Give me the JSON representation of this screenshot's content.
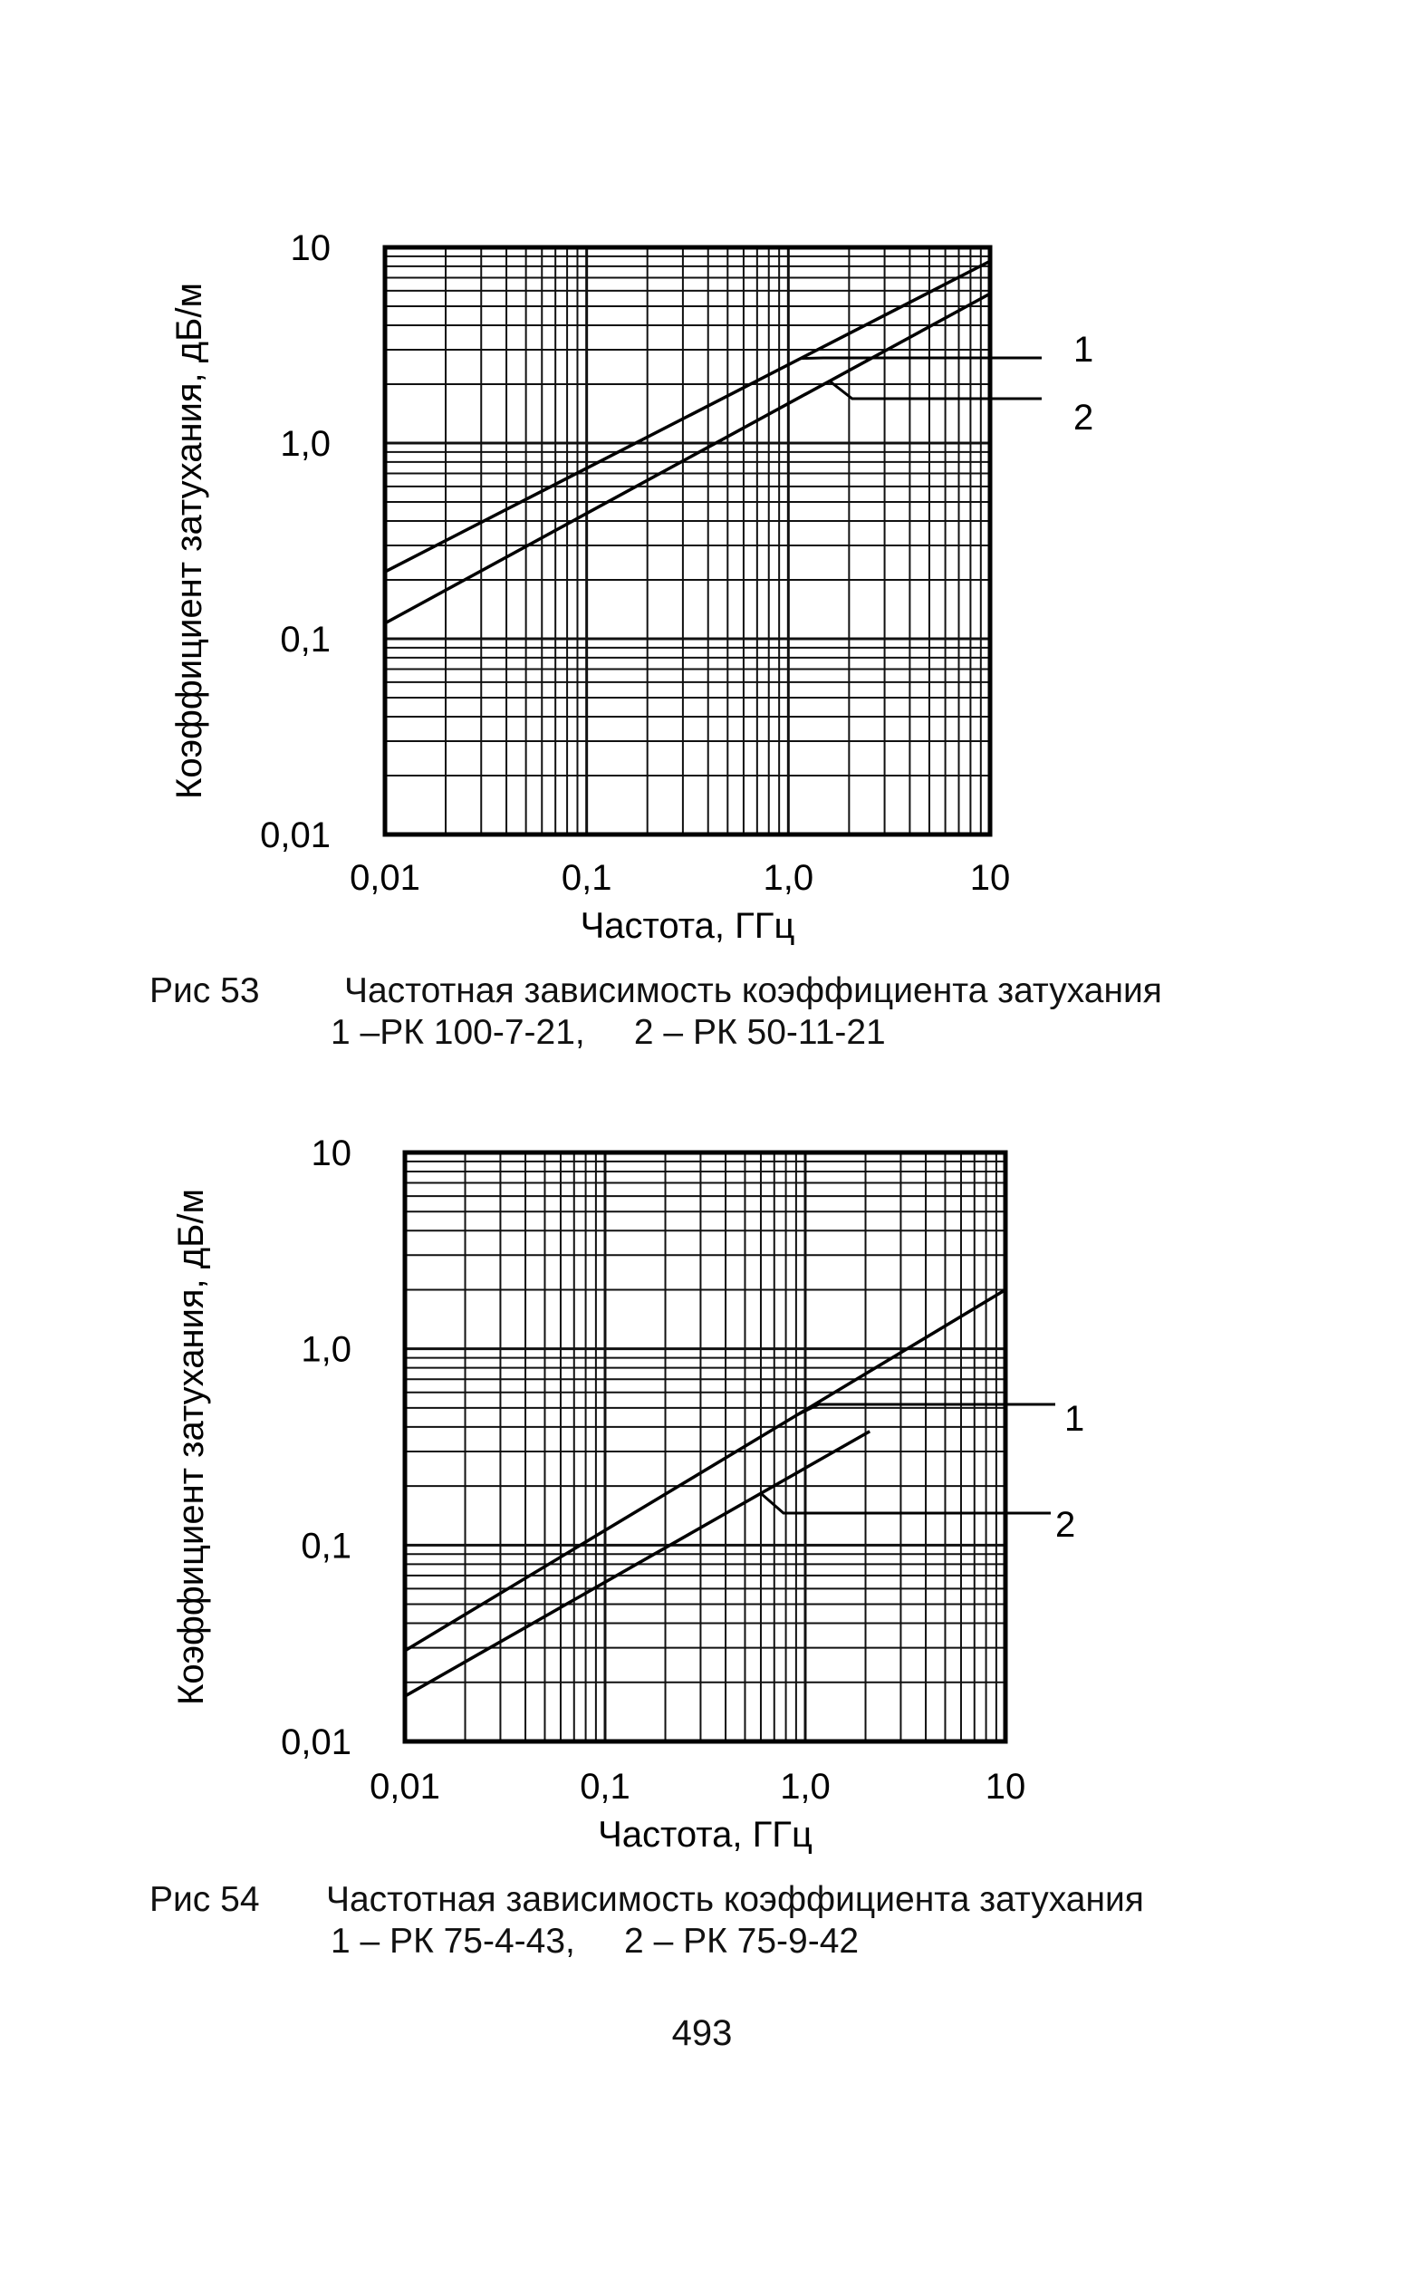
{
  "chart_data": [
    {
      "type": "line",
      "scale": "log-log",
      "grid": true,
      "xlabel": "Частота, ГГц",
      "ylabel": "Коэффициент затухания, дБ/м",
      "xlim": [
        0.01,
        10
      ],
      "ylim": [
        0.01,
        10
      ],
      "x_ticks": [
        0.01,
        0.1,
        1,
        10
      ],
      "x_tick_labels": [
        "0,01",
        "0,1",
        "1,0",
        "10"
      ],
      "y_ticks": [
        0.01,
        0.1,
        1,
        10
      ],
      "y_tick_labels": [
        "0,01",
        "0,1",
        "1,0",
        "10"
      ],
      "series": [
        {
          "name": "1",
          "x": [
            0.01,
            10
          ],
          "y": [
            0.22,
            8.5
          ]
        },
        {
          "name": "2",
          "x": [
            0.01,
            10
          ],
          "y": [
            0.12,
            5.8
          ]
        }
      ],
      "annotations": [
        "1",
        "2"
      ]
    },
    {
      "type": "line",
      "scale": "log-log",
      "grid": true,
      "xlabel": "Частота, ГГц",
      "ylabel": "Коэффициент затухания, дБ/м",
      "xlim": [
        0.01,
        10
      ],
      "ylim": [
        0.01,
        10
      ],
      "x_ticks": [
        0.01,
        0.1,
        1,
        10
      ],
      "x_tick_labels": [
        "0,01",
        "0,1",
        "1,0",
        "10"
      ],
      "y_ticks": [
        0.01,
        0.1,
        1,
        10
      ],
      "y_tick_labels": [
        "0,01",
        "0,1",
        "1,0",
        "10"
      ],
      "series": [
        {
          "name": "1",
          "x": [
            0.01,
            10
          ],
          "y": [
            0.029,
            2.0
          ]
        },
        {
          "name": "2",
          "x": [
            0.01,
            2.1
          ],
          "y": [
            0.017,
            0.38
          ]
        }
      ],
      "annotations": [
        "1",
        "2"
      ]
    }
  ],
  "captions": [
    {
      "fig": "Рис 53",
      "title": "Частотная зависимость коэффициента затухания",
      "legend": "1 –РК 100-7-21,     2 – РК 50-11-21"
    },
    {
      "fig": "Рис 54",
      "title": "Частотная зависимость коэффициента затухания",
      "legend": "1 – РК 75-4-43,     2 – РК 75-9-42"
    }
  ],
  "page_number": "493"
}
